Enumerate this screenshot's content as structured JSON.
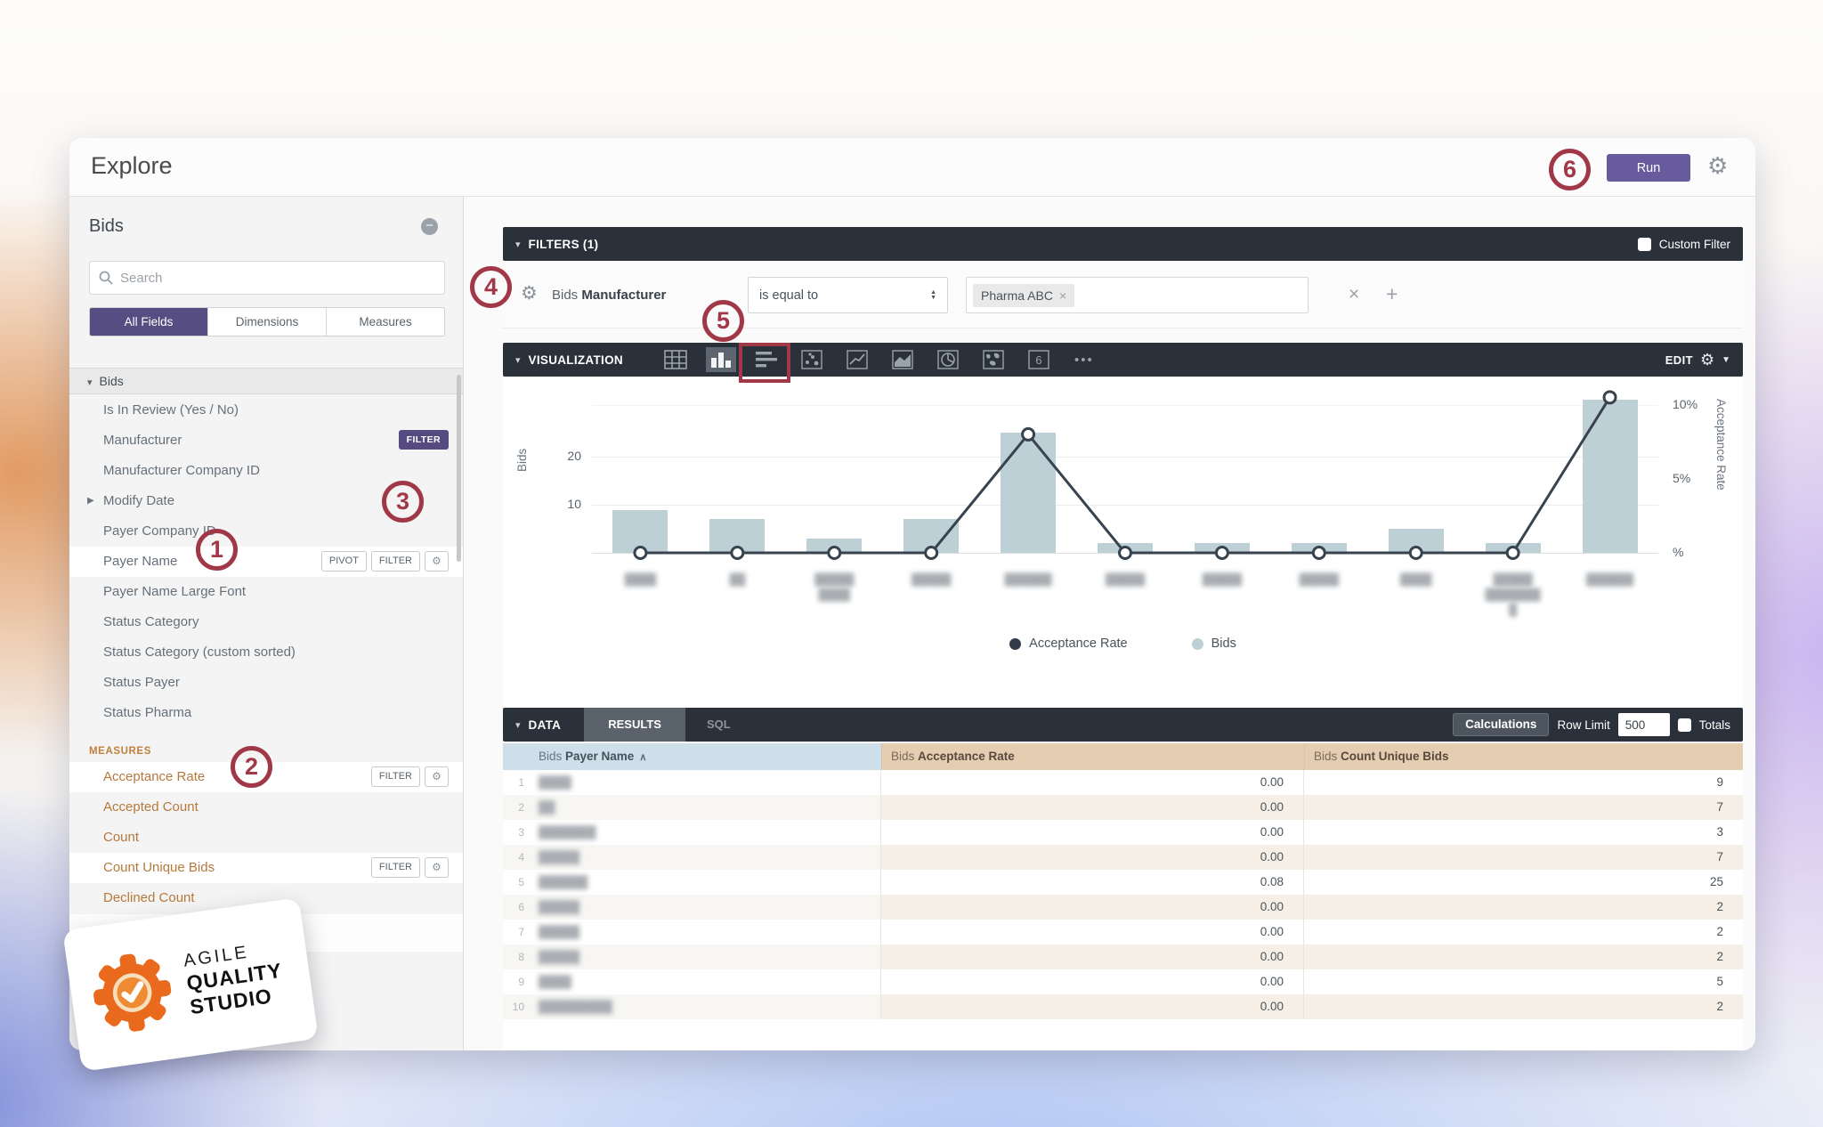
{
  "app": {
    "title": "Explore",
    "run_label": "Run"
  },
  "sidebar": {
    "view_name": "Bids",
    "search_placeholder": "Search",
    "tabs": [
      {
        "label": "All Fields",
        "active": true
      },
      {
        "label": "Dimensions",
        "active": false
      },
      {
        "label": "Measures",
        "active": false
      }
    ],
    "group_header": "Bids",
    "fields": [
      {
        "label": "Is In Review (Yes / No)",
        "type": "dimension"
      },
      {
        "label": "Manufacturer",
        "type": "dimension",
        "badge": "FILTER"
      },
      {
        "label": "Manufacturer Company ID",
        "type": "dimension"
      },
      {
        "label": "Modify Date",
        "type": "dimension",
        "expand_arrow": true
      },
      {
        "label": "Payer Company ID",
        "type": "dimension"
      },
      {
        "label": "Payer Name",
        "type": "dimension",
        "selected": true,
        "buttons": [
          "PIVOT",
          "FILTER"
        ],
        "gear": true
      },
      {
        "label": "Payer Name Large Font",
        "type": "dimension"
      },
      {
        "label": "Status Category",
        "type": "dimension"
      },
      {
        "label": "Status Category (custom sorted)",
        "type": "dimension"
      },
      {
        "label": "Status Payer",
        "type": "dimension"
      },
      {
        "label": "Status Pharma",
        "type": "dimension"
      },
      {
        "label": "MEASURES",
        "type": "section"
      },
      {
        "label": "Acceptance Rate",
        "type": "measure",
        "selected": true,
        "buttons": [
          "FILTER"
        ],
        "gear": true
      },
      {
        "label": "Accepted Count",
        "type": "measure"
      },
      {
        "label": "Count",
        "type": "measure"
      },
      {
        "label": "Count Unique Bids",
        "type": "measure",
        "selected": true,
        "buttons": [
          "FILTER"
        ],
        "gear": true
      },
      {
        "label": "Declined Count",
        "type": "measure"
      }
    ]
  },
  "filters": {
    "header": "FILTERS (1)",
    "custom_filter_label": "Custom Filter",
    "field_prefix": "Bids",
    "field_name": "Manufacturer",
    "operator": "is equal to",
    "value_tag": "Pharma ABC"
  },
  "visualization": {
    "header": "VISUALIZATION",
    "edit_label": "EDIT",
    "icon_names": [
      "table",
      "column-chart",
      "bar-chart",
      "scatter",
      "line-chart",
      "area-chart",
      "pie-chart",
      "map",
      "single-value",
      "more"
    ],
    "selected_icon": "column-chart"
  },
  "chart_data": {
    "type": "bar",
    "subtype": "column-plus-line-combo",
    "categories_note": "x-axis labels are blurred/redacted in source screenshot",
    "categories": [
      [
        "████"
      ],
      [
        "██"
      ],
      [
        "█████",
        "████"
      ],
      [
        "█████"
      ],
      [
        "██████"
      ],
      [
        "█████"
      ],
      [
        "█████"
      ],
      [
        "█████"
      ],
      [
        "████"
      ],
      [
        "█████",
        "███████",
        "█"
      ],
      [
        "██████"
      ]
    ],
    "series": [
      {
        "name": "Bids",
        "type": "bar",
        "color": "#bdd0d6",
        "values": [
          9,
          7,
          3,
          7,
          25,
          2,
          2,
          2,
          5,
          2,
          32
        ]
      },
      {
        "name": "Acceptance Rate",
        "type": "line",
        "color": "#39424f",
        "values_percent": [
          0,
          0,
          0,
          0,
          8,
          0,
          0,
          0,
          0,
          0,
          10.5
        ]
      }
    ],
    "left_axis": {
      "title": "Bids",
      "ticks": [
        20,
        10
      ],
      "max": 34
    },
    "right_axis": {
      "title": "Acceptance Rate",
      "ticks": [
        {
          "label": "10%",
          "v": 10
        },
        {
          "label": "5%",
          "v": 5
        },
        {
          "label": "%",
          "v": 0
        }
      ],
      "max": 11
    },
    "legend": [
      {
        "label": "Acceptance Rate",
        "color": "#323c49"
      },
      {
        "label": "Bids",
        "color": "#bdd0d6"
      }
    ],
    "grid": true,
    "legend_position": "bottom"
  },
  "data_section": {
    "header": "DATA",
    "tabs": {
      "results": "RESULTS",
      "sql": "SQL"
    },
    "calculations_label": "Calculations",
    "row_limit_label": "Row Limit",
    "row_limit_value": "500",
    "totals_label": "Totals",
    "table": {
      "columns": [
        {
          "prefix": "Bids",
          "name": "Payer Name",
          "sorted": "asc"
        },
        {
          "prefix": "Bids",
          "name": "Acceptance Rate"
        },
        {
          "prefix": "Bids",
          "name": "Count Unique Bids"
        }
      ],
      "payer_names_note": "payer names are blurred/redacted in source screenshot",
      "rows": [
        {
          "num": "1",
          "payer": "████",
          "acceptance": "0.00",
          "count": "9"
        },
        {
          "num": "2",
          "payer": "██",
          "acceptance": "0.00",
          "count": "7"
        },
        {
          "num": "3",
          "payer": "███████",
          "acceptance": "0.00",
          "count": "3"
        },
        {
          "num": "4",
          "payer": "█████",
          "acceptance": "0.00",
          "count": "7"
        },
        {
          "num": "5",
          "payer": "██████",
          "acceptance": "0.08",
          "count": "25"
        },
        {
          "num": "6",
          "payer": "█████",
          "acceptance": "0.00",
          "count": "2"
        },
        {
          "num": "7",
          "payer": "█████",
          "acceptance": "0.00",
          "count": "2"
        },
        {
          "num": "8",
          "payer": "█████",
          "acceptance": "0.00",
          "count": "2"
        },
        {
          "num": "9",
          "payer": "████",
          "acceptance": "0.00",
          "count": "5"
        },
        {
          "num": "10",
          "payer": "█████████",
          "acceptance": "0.00",
          "count": "2"
        }
      ]
    }
  },
  "annotations": {
    "callouts": [
      "1",
      "2",
      "3",
      "4",
      "5",
      "6"
    ]
  },
  "logo": {
    "line1": "AGILE",
    "line2": "QUALITY",
    "line3": "STUDIO"
  },
  "colors": {
    "accent_purple": "#564d82",
    "run_purple": "#675b9d",
    "dark_bar": "#2a313b",
    "annotation_red": "#a13848",
    "bar_fill": "#bdd0d6",
    "line_stroke": "#39424f",
    "dim_header_bg": "#cedfea",
    "measure_header_bg": "#e5cdb2",
    "logo_orange": "#ea6a1d"
  }
}
